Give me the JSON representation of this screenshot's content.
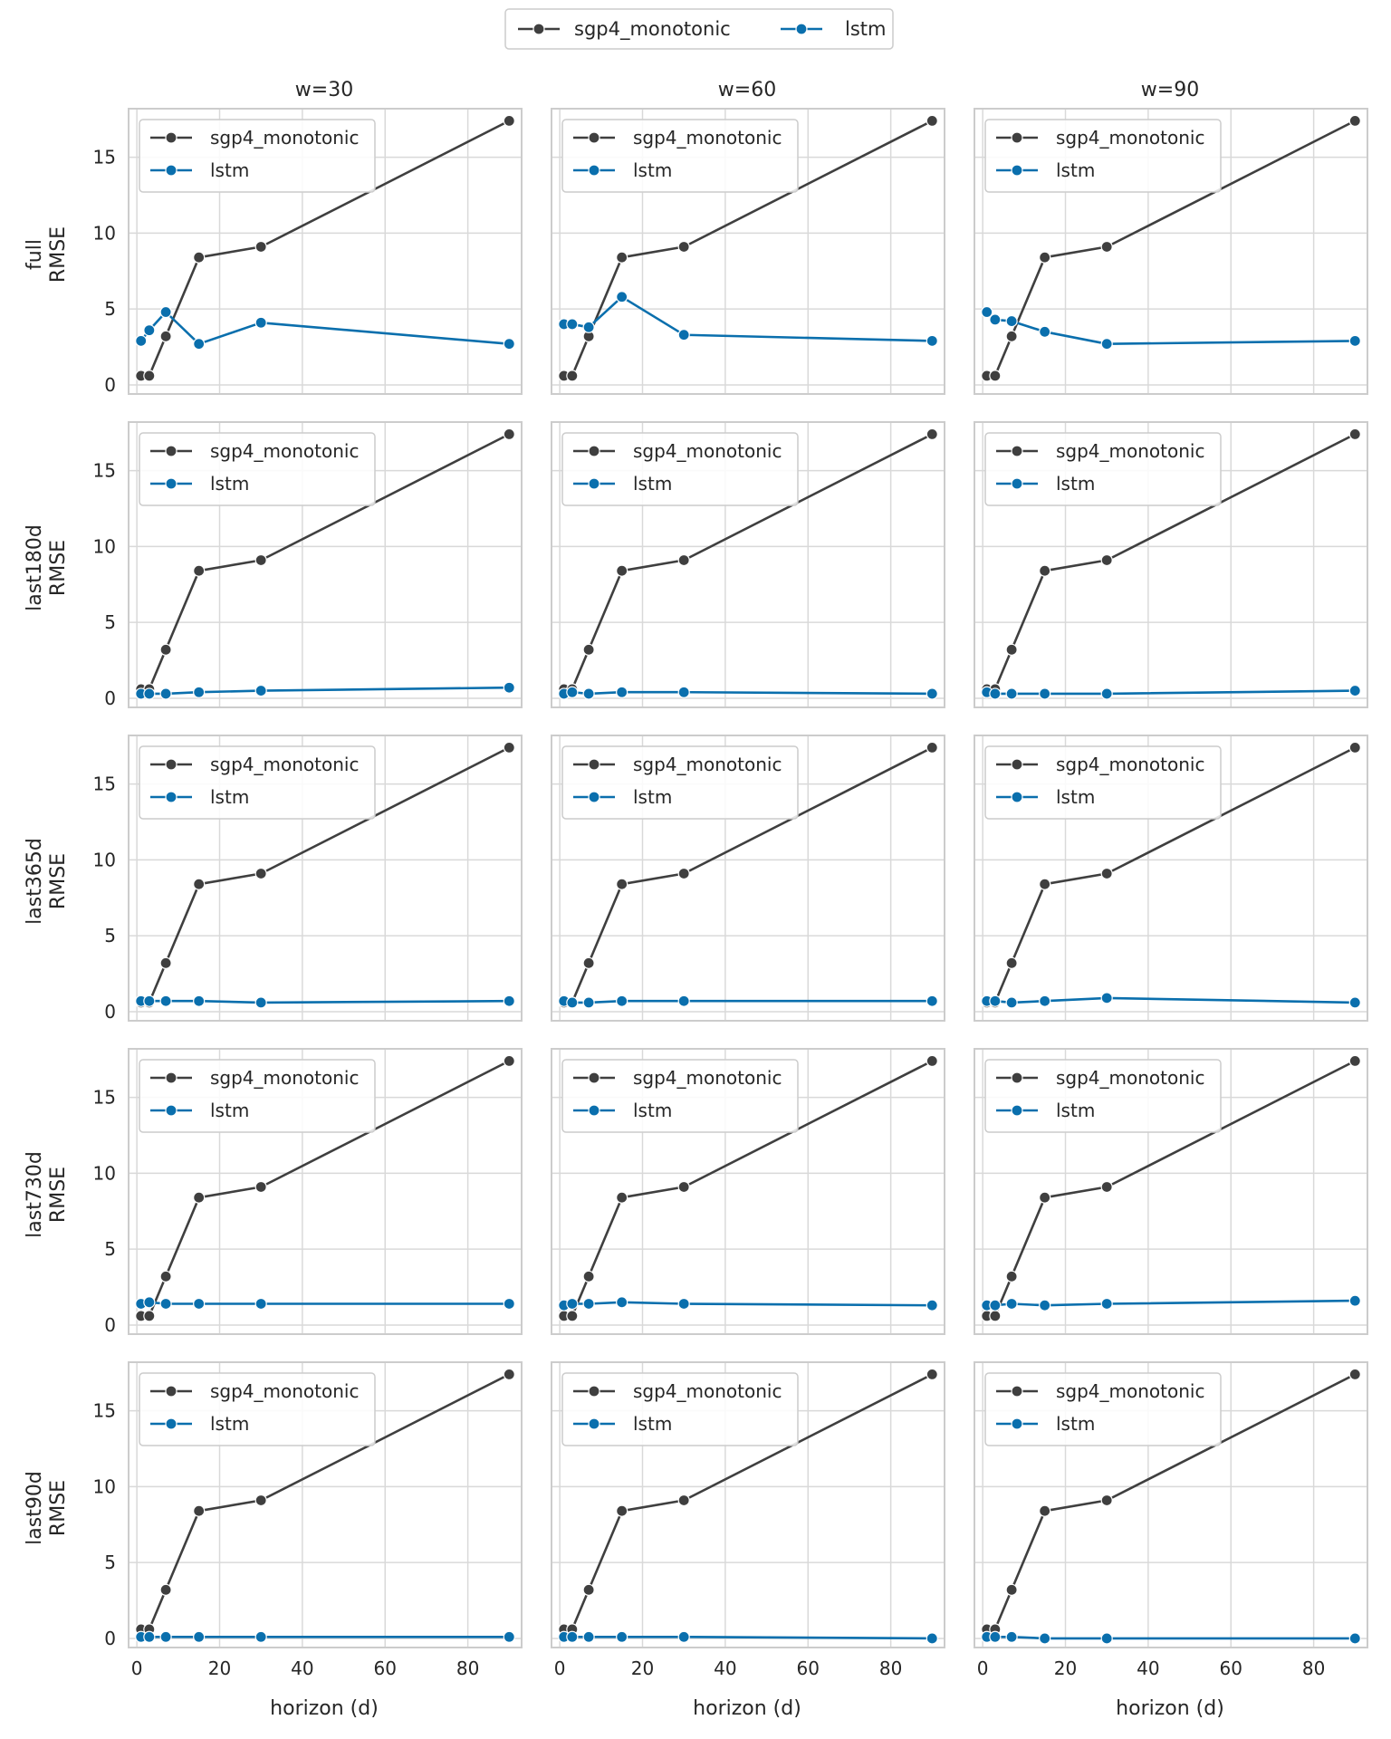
{
  "figure_legend": {
    "entries": [
      {
        "label": "sgp4_monotonic",
        "color": "#3f3f3f"
      },
      {
        "label": "lstm",
        "color": "#0a6fad"
      }
    ]
  },
  "colors": {
    "sgp4_monotonic": "#3f3f3f",
    "lstm": "#0a6fad",
    "grid": "#d9d9d9",
    "frame": "#cccccc"
  },
  "column_titles": [
    "w=30",
    "w=60",
    "w=90"
  ],
  "row_labels": [
    {
      "name": "full",
      "unit": "RMSE"
    },
    {
      "name": "last180d",
      "unit": "RMSE"
    },
    {
      "name": "last365d",
      "unit": "RMSE"
    },
    {
      "name": "last730d",
      "unit": "RMSE"
    },
    {
      "name": "last90d",
      "unit": "RMSE"
    }
  ],
  "xlabel": "horizon (d)",
  "chart_data": {
    "type": "line",
    "layout": "facet grid (rows x columns)",
    "x": [
      1,
      3,
      7,
      15,
      30,
      90
    ],
    "xlim": [
      -2,
      93
    ],
    "ylim": [
      -0.6,
      18.2
    ],
    "xticks": [
      0,
      20,
      40,
      60,
      80
    ],
    "yticks": [
      0,
      5,
      10,
      15
    ],
    "grid": true,
    "legend_placement": "upper-left in each panel; figure legend top-center",
    "shared_sgp4_monotonic": [
      0.6,
      0.6,
      3.2,
      8.4,
      9.1,
      17.4
    ],
    "panels": [
      [
        {
          "sgp4_monotonic": [
            0.6,
            0.6,
            3.2,
            8.4,
            9.1,
            17.4
          ],
          "lstm": [
            2.9,
            3.6,
            4.8,
            2.7,
            4.1,
            2.7
          ]
        },
        {
          "sgp4_monotonic": [
            0.6,
            0.6,
            3.2,
            8.4,
            9.1,
            17.4
          ],
          "lstm": [
            4.0,
            4.0,
            3.8,
            5.8,
            3.3,
            2.9
          ]
        },
        {
          "sgp4_monotonic": [
            0.6,
            0.6,
            3.2,
            8.4,
            9.1,
            17.4
          ],
          "lstm": [
            4.8,
            4.3,
            4.2,
            3.5,
            2.7,
            2.9
          ]
        }
      ],
      [
        {
          "sgp4_monotonic": [
            0.6,
            0.6,
            3.2,
            8.4,
            9.1,
            17.4
          ],
          "lstm": [
            0.3,
            0.3,
            0.3,
            0.4,
            0.5,
            0.7
          ]
        },
        {
          "sgp4_monotonic": [
            0.6,
            0.6,
            3.2,
            8.4,
            9.1,
            17.4
          ],
          "lstm": [
            0.3,
            0.4,
            0.3,
            0.4,
            0.4,
            0.3
          ]
        },
        {
          "sgp4_monotonic": [
            0.6,
            0.6,
            3.2,
            8.4,
            9.1,
            17.4
          ],
          "lstm": [
            0.4,
            0.3,
            0.3,
            0.3,
            0.3,
            0.5
          ]
        }
      ],
      [
        {
          "sgp4_monotonic": [
            0.6,
            0.6,
            3.2,
            8.4,
            9.1,
            17.4
          ],
          "lstm": [
            0.7,
            0.7,
            0.7,
            0.7,
            0.6,
            0.7
          ]
        },
        {
          "sgp4_monotonic": [
            0.6,
            0.6,
            3.2,
            8.4,
            9.1,
            17.4
          ],
          "lstm": [
            0.7,
            0.6,
            0.6,
            0.7,
            0.7,
            0.7
          ]
        },
        {
          "sgp4_monotonic": [
            0.6,
            0.6,
            3.2,
            8.4,
            9.1,
            17.4
          ],
          "lstm": [
            0.7,
            0.7,
            0.6,
            0.7,
            0.9,
            0.6
          ]
        }
      ],
      [
        {
          "sgp4_monotonic": [
            0.6,
            0.6,
            3.2,
            8.4,
            9.1,
            17.4
          ],
          "lstm": [
            1.4,
            1.5,
            1.4,
            1.4,
            1.4,
            1.4
          ]
        },
        {
          "sgp4_monotonic": [
            0.6,
            0.6,
            3.2,
            8.4,
            9.1,
            17.4
          ],
          "lstm": [
            1.3,
            1.4,
            1.4,
            1.5,
            1.4,
            1.3
          ]
        },
        {
          "sgp4_monotonic": [
            0.6,
            0.6,
            3.2,
            8.4,
            9.1,
            17.4
          ],
          "lstm": [
            1.3,
            1.3,
            1.4,
            1.3,
            1.4,
            1.6
          ]
        }
      ],
      [
        {
          "sgp4_monotonic": [
            0.6,
            0.6,
            3.2,
            8.4,
            9.1,
            17.4
          ],
          "lstm": [
            0.1,
            0.1,
            0.1,
            0.1,
            0.1,
            0.1
          ]
        },
        {
          "sgp4_monotonic": [
            0.6,
            0.6,
            3.2,
            8.4,
            9.1,
            17.4
          ],
          "lstm": [
            0.1,
            0.1,
            0.1,
            0.1,
            0.1,
            0.0
          ]
        },
        {
          "sgp4_monotonic": [
            0.6,
            0.6,
            3.2,
            8.4,
            9.1,
            17.4
          ],
          "lstm": [
            0.1,
            0.1,
            0.1,
            0.0,
            0.0,
            0.0
          ]
        }
      ]
    ]
  }
}
